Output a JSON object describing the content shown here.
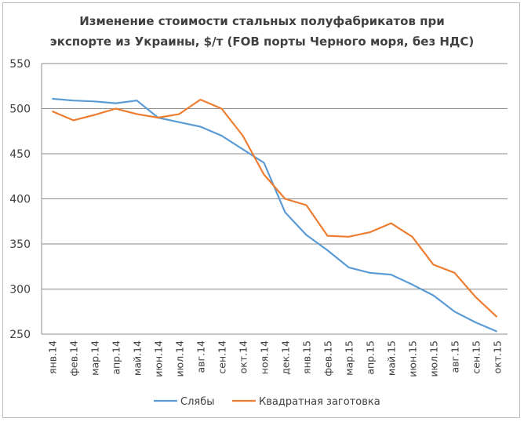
{
  "chart_data": {
    "type": "line",
    "title": "Изменение стоимости стальных полуфабрикатов при экспорте из Украины, $/т (FOB порты Черного моря, без НДС)",
    "title_lines": [
      "Изменение стоимости стальных полуфабрикатов при",
      "экспорте из Украины, $/т (FOB порты Черного моря, без НДС)"
    ],
    "xlabel": "",
    "ylabel": "",
    "ylim": [
      250,
      550
    ],
    "yticks": [
      250,
      300,
      350,
      400,
      450,
      500,
      550
    ],
    "grid": true,
    "legend_position": "bottom",
    "categories": [
      "янв.14",
      "фев.14",
      "мар.14",
      "апр.14",
      "май.14",
      "июн.14",
      "июл.14",
      "авг.14",
      "сен.14",
      "окт.14",
      "ноя.14",
      "дек.14",
      "янв.15",
      "фев.15",
      "мар.15",
      "апр.15",
      "май.15",
      "июн.15",
      "июл.15",
      "авг.15",
      "сен.15",
      "окт.15"
    ],
    "series": [
      {
        "name": "Слябы",
        "color": "#5b9bd5",
        "values": [
          511,
          509,
          508,
          506,
          509,
          490,
          485,
          480,
          470,
          455,
          440,
          385,
          360,
          343,
          324,
          318,
          316,
          305,
          293,
          275,
          263,
          253
        ]
      },
      {
        "name": "Квадратная  заготовка",
        "color": "#ed7d31",
        "values": [
          497,
          487,
          493,
          500,
          494,
          490,
          494,
          510,
          500,
          470,
          427,
          400,
          393,
          359,
          358,
          363,
          373,
          358,
          327,
          318,
          291,
          269
        ]
      }
    ]
  }
}
